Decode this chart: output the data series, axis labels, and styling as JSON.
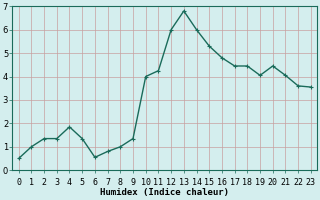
{
  "x": [
    0,
    1,
    2,
    3,
    4,
    5,
    6,
    7,
    8,
    9,
    10,
    11,
    12,
    13,
    14,
    15,
    16,
    17,
    18,
    19,
    20,
    21,
    22,
    23
  ],
  "y": [
    0.5,
    1.0,
    1.35,
    1.35,
    1.85,
    1.35,
    0.55,
    0.8,
    1.0,
    1.35,
    4.0,
    4.25,
    6.0,
    6.8,
    6.0,
    5.3,
    4.8,
    4.45,
    4.45,
    4.05,
    4.45,
    4.05,
    3.6,
    3.55
  ],
  "line_color": "#1a6b5a",
  "marker": "+",
  "marker_color": "#1a6b5a",
  "bg_color": "#d4eeee",
  "grid_color": "#c8a0a0",
  "title": "",
  "xlabel": "Humidex (Indice chaleur)",
  "ylabel": "",
  "xlim": [
    -0.5,
    23.5
  ],
  "ylim": [
    0,
    7
  ],
  "yticks": [
    0,
    1,
    2,
    3,
    4,
    5,
    6,
    7
  ],
  "xtick_labels": [
    "0",
    "1",
    "2",
    "3",
    "4",
    "5",
    "6",
    "7",
    "8",
    "9",
    "10",
    "11",
    "12",
    "13",
    "14",
    "15",
    "16",
    "17",
    "18",
    "19",
    "20",
    "21",
    "22",
    "23"
  ],
  "xlabel_fontsize": 6.5,
  "tick_fontsize": 6,
  "line_width": 1.0,
  "marker_size": 3,
  "marker_edge_width": 0.8
}
